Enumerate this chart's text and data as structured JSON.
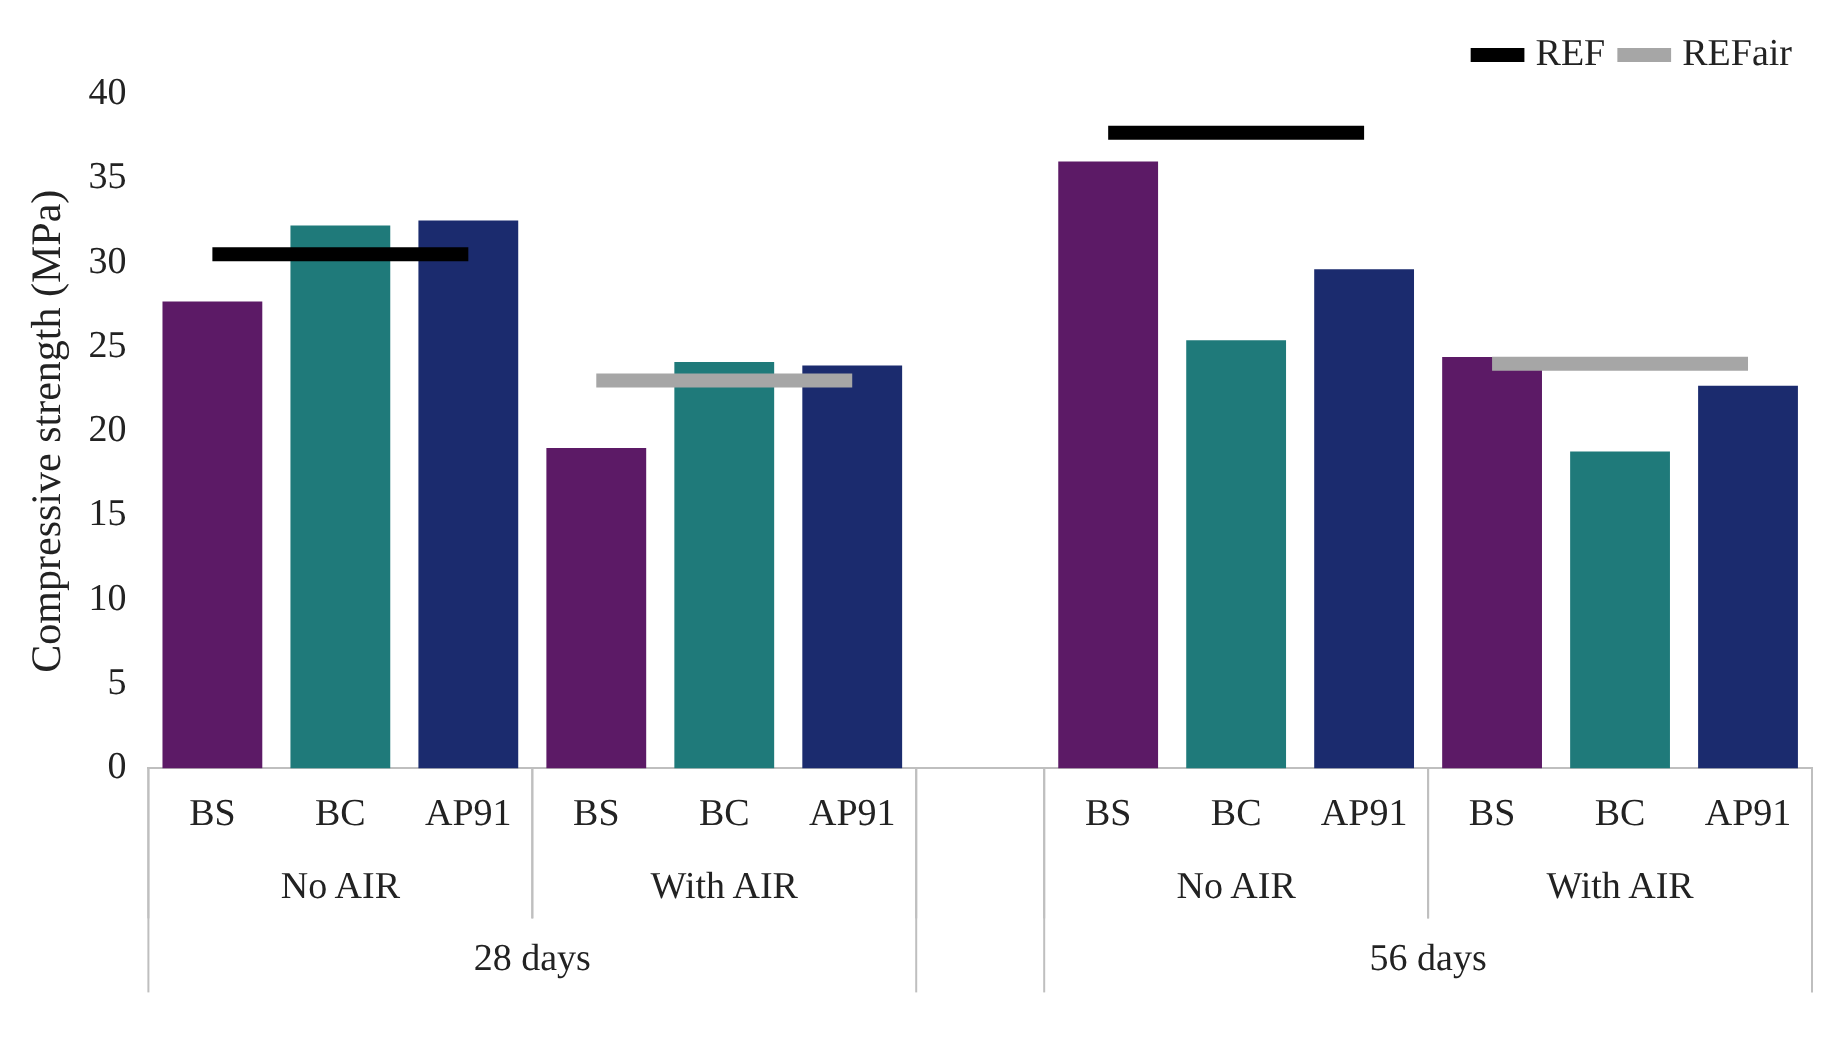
{
  "chart_data": {
    "type": "bar",
    "ylabel": "Compressive strength (MPa)",
    "categories": [
      "BS",
      "BC",
      "AP91",
      "BS",
      "BC",
      "AP91",
      null,
      "BS",
      "BC",
      "AP91",
      "BS",
      "BC",
      "AP91"
    ],
    "series": [
      {
        "colors": [
          "#5c1a66",
          "#1f7a7a",
          "#1b2b6e",
          "#5c1a66",
          "#1f7a7a",
          "#1b2b6e",
          "#000000",
          "#5c1a66",
          "#1f7a7a",
          "#1b2b6e",
          "#5c1a66",
          "#1f7a7a",
          "#1b2b6e"
        ],
        "values": [
          27.7,
          32.2,
          32.5,
          19,
          24.1,
          23.9,
          null,
          36,
          25.4,
          29.6,
          24.4,
          18.8,
          22.7
        ]
      },
      {
        "type": "line",
        "name": "REF",
        "color": "#000000",
        "values": [
          30.5,
          30.5,
          30.5,
          null,
          null,
          null,
          null,
          37.7,
          37.7,
          37.7,
          null,
          null,
          null
        ]
      },
      {
        "type": "line",
        "name": "REFair",
        "color": "#a6a6a6",
        "values": [
          null,
          null,
          null,
          23,
          23,
          23,
          null,
          null,
          null,
          null,
          24,
          24,
          24
        ]
      }
    ],
    "ylim": [
      0,
      40
    ],
    "yticks": [
      0,
      5,
      10,
      15,
      20,
      25,
      30,
      35,
      40
    ],
    "grid": false,
    "legend": "top right",
    "annotations": [
      "No AIR",
      "With AIR",
      "No AIR",
      "With AIR",
      "28 days",
      "56 days"
    ]
  }
}
